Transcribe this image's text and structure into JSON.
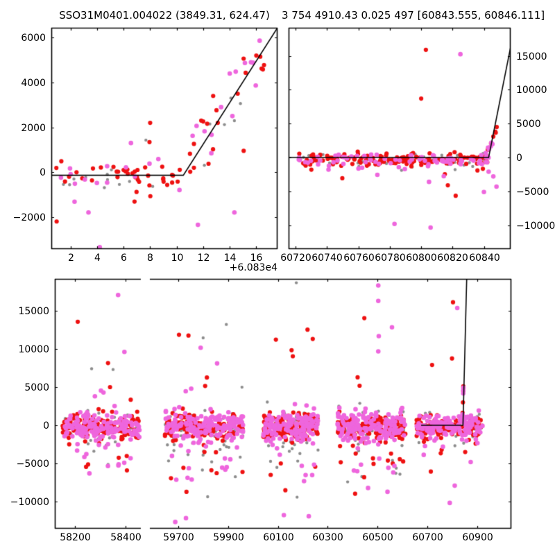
{
  "titles": {
    "left": "SSO31M0401.004022 (3849.31, 624.47)",
    "right": "3 754 4910.43 0.025 497 [60843.555, 60846.111]"
  },
  "colors": {
    "red": "#ee1111",
    "violet": "#ee66dd",
    "gray": "#8d8d8d",
    "line": "#000000",
    "axis": "#000000"
  },
  "chart_data": [
    {
      "id": "top-left-panel",
      "type": "scatter",
      "xlim": [
        0.55,
        17.6
      ],
      "ylim": [
        -3430,
        6440
      ],
      "x_offset_label": "+6.083e4",
      "ytick_side": "left",
      "xticks": [
        {
          "v": 2,
          "l": "2"
        },
        {
          "v": 4,
          "l": "4"
        },
        {
          "v": 6,
          "l": "6"
        },
        {
          "v": 8,
          "l": "8"
        },
        {
          "v": 10,
          "l": "10"
        },
        {
          "v": 12,
          "l": "12"
        },
        {
          "v": 14,
          "l": "14"
        },
        {
          "v": 16,
          "l": "16"
        }
      ],
      "yticks": [
        {
          "v": -2000,
          "l": "−2000"
        },
        {
          "v": 0,
          "l": "0"
        },
        {
          "v": 2000,
          "l": "2000"
        },
        {
          "v": 4000,
          "l": "4000"
        },
        {
          "v": 6000,
          "l": "6000"
        }
      ],
      "line": [
        [
          0.55,
          -140
        ],
        [
          10.5,
          -140
        ],
        [
          17.6,
          6440
        ]
      ],
      "bands": [
        {
          "seed": 11,
          "x": [
            0.68,
            10.45
          ],
          "mu": -180,
          "groups": {
            "gray": {
              "n": 11,
              "sigma": 420
            },
            "red": {
              "n": 40,
              "sigma": 300
            },
            "violet": {
              "n": 13,
              "sigma": 420
            }
          }
        }
      ],
      "rises": [
        {
          "seed": 12,
          "x0": 10.7,
          "dx": 5.9,
          "ymax": 5100,
          "noise": 550,
          "n": 16,
          "colors": [
            "red",
            "violet",
            "gray"
          ]
        }
      ],
      "tails": [],
      "outliers": [
        [
          8.0,
          2200,
          "r"
        ],
        [
          7.68,
          1430,
          "g"
        ],
        [
          7.95,
          1340,
          "r"
        ],
        [
          6.55,
          1300,
          "v"
        ],
        [
          0.95,
          -2200,
          "r"
        ],
        [
          2.3,
          -1320,
          "v"
        ],
        [
          3.35,
          -1800,
          "v"
        ],
        [
          4.2,
          -3350,
          "v"
        ],
        [
          11.6,
          -2350,
          "v"
        ],
        [
          14.35,
          -1800,
          "v"
        ],
        [
          15.05,
          950,
          "r"
        ],
        [
          16.0,
          5200,
          "r"
        ],
        [
          16.3,
          5150,
          "r"
        ],
        [
          15.6,
          4900,
          "v"
        ],
        [
          15.75,
          4880,
          "v"
        ],
        [
          14.0,
          4400,
          "v"
        ],
        [
          15.2,
          4430,
          "r"
        ],
        [
          16.4,
          4620,
          "r"
        ],
        [
          16.5,
          4580,
          "r"
        ],
        [
          12.75,
          3400,
          "r"
        ],
        [
          14.6,
          3500,
          "r"
        ],
        [
          13.0,
          2760,
          "r"
        ],
        [
          12.0,
          2260,
          "r"
        ],
        [
          11.5,
          2060,
          "v"
        ],
        [
          12.3,
          2160,
          "r"
        ],
        [
          13.35,
          2900,
          "v"
        ],
        [
          14.2,
          2500,
          "v"
        ],
        [
          13.6,
          2120,
          "g"
        ],
        [
          12.5,
          2150,
          "g"
        ],
        [
          11.2,
          1620,
          "v"
        ],
        [
          11.0,
          820,
          "r"
        ],
        [
          11.3,
          1260,
          "r"
        ],
        [
          12.1,
          1820,
          "v"
        ],
        [
          11.85,
          2300,
          "r"
        ],
        [
          14.45,
          4480,
          "v"
        ],
        [
          13.1,
          2200,
          "r"
        ]
      ]
    },
    {
      "id": "top-right-panel",
      "type": "scatter",
      "xlim": [
        60715.5,
        60857
      ],
      "ylim": [
        -13520,
        19160
      ],
      "ytick_side": "right",
      "xticks": [
        {
          "v": 60720,
          "l": "60720"
        },
        {
          "v": 60740,
          "l": "60740"
        },
        {
          "v": 60760,
          "l": "60760"
        },
        {
          "v": 60780,
          "l": "60780"
        },
        {
          "v": 60800,
          "l": "60800"
        },
        {
          "v": 60820,
          "l": "60820"
        },
        {
          "v": 60840,
          "l": "60840"
        }
      ],
      "yticks": [
        {
          "v": -10000,
          "l": "−10000"
        },
        {
          "v": -5000,
          "l": "−5000"
        },
        {
          "v": 0,
          "l": "0"
        },
        {
          "v": 5000,
          "l": "5000"
        },
        {
          "v": 10000,
          "l": "10000"
        },
        {
          "v": 15000,
          "l": "15000"
        }
      ],
      "line": [
        [
          60715.5,
          0
        ],
        [
          60843,
          0
        ],
        [
          60857,
          16300
        ]
      ],
      "bands": [
        {
          "seed": 21,
          "x": [
            60722,
            60843
          ],
          "mu": -280,
          "groups": {
            "gray": {
              "n": 38,
              "sigma": 620
            },
            "red": {
              "n": 150,
              "sigma": 430
            },
            "violet": {
              "n": 72,
              "sigma": 500
            }
          }
        }
      ],
      "rises": [
        {
          "seed": 22,
          "x0": 60841,
          "dx": 8,
          "ymax": 4800,
          "noise": 420,
          "n": 20,
          "colors": [
            "red",
            "violet"
          ]
        }
      ],
      "tails": [
        {
          "seed": 23,
          "x": [
            60740,
            60845
          ],
          "y": [
            -3200,
            -1200
          ],
          "n": 14,
          "weights": {
            "violet": 0.45,
            "red": 0.45,
            "gray": 0.1
          }
        }
      ],
      "outliers": [
        [
          60803,
          15900,
          "r"
        ],
        [
          60825,
          15250,
          "v"
        ],
        [
          60800,
          8700,
          "r"
        ],
        [
          60783,
          -9800,
          "v"
        ],
        [
          60806,
          -10350,
          "v"
        ],
        [
          60822,
          -5650,
          "r"
        ],
        [
          60840,
          -5100,
          "v"
        ],
        [
          60817,
          -4100,
          "r"
        ],
        [
          60805,
          -3600,
          "v"
        ],
        [
          60843,
          -2100,
          "v"
        ],
        [
          60846,
          -2800,
          "v"
        ],
        [
          60848,
          -4300,
          "v"
        ],
        [
          60730,
          -1800,
          "r"
        ]
      ]
    },
    {
      "id": "bottom-panel",
      "type": "scatter",
      "segments": [
        {
          "xlim": [
            58119,
            58460
          ],
          "frac": [
            0,
            0.1884
          ]
        },
        {
          "xlim": [
            59586,
            61037
          ],
          "frac": [
            0.2082,
            1
          ]
        }
      ],
      "ylim": [
        -13520,
        19160
      ],
      "ytick_side": "left",
      "xticks": [
        {
          "v": 58200,
          "l": "58200"
        },
        {
          "v": 58400,
          "l": "58400"
        },
        {
          "v": 59700,
          "l": "59700"
        },
        {
          "v": 59900,
          "l": "59900"
        },
        {
          "v": 60100,
          "l": "60100"
        },
        {
          "v": 60300,
          "l": "60300"
        },
        {
          "v": 60500,
          "l": "60500"
        },
        {
          "v": 60700,
          "l": "60700"
        },
        {
          "v": 60900,
          "l": "60900"
        }
      ],
      "yticks": [
        {
          "v": -10000,
          "l": "−10000"
        },
        {
          "v": -5000,
          "l": "−5000"
        },
        {
          "v": 0,
          "l": "0"
        },
        {
          "v": 5000,
          "l": "5000"
        },
        {
          "v": 10000,
          "l": "10000"
        },
        {
          "v": 15000,
          "l": "15000"
        }
      ],
      "line": [
        [
          60675,
          0
        ],
        [
          60843,
          0
        ],
        [
          60858,
          19160
        ]
      ],
      "bands": [
        {
          "seed": 31,
          "x": [
            58150,
            58455
          ],
          "mu": -200,
          "groups": {
            "gray": {
              "n": 45,
              "sigma": 1350
            },
            "red": {
              "n": 130,
              "sigma": 800
            },
            "violet": {
              "n": 150,
              "sigma": 950
            }
          }
        },
        {
          "seed": 32,
          "x": [
            59645,
            59960
          ],
          "mu": -200,
          "groups": {
            "gray": {
              "n": 50,
              "sigma": 1400
            },
            "red": {
              "n": 150,
              "sigma": 820
            },
            "violet": {
              "n": 170,
              "sigma": 950
            }
          }
        },
        {
          "seed": 33,
          "x": [
            60040,
            60262
          ],
          "mu": -250,
          "groups": {
            "gray": {
              "n": 40,
              "sigma": 1350
            },
            "red": {
              "n": 140,
              "sigma": 850
            },
            "violet": {
              "n": 150,
              "sigma": 950
            }
          }
        },
        {
          "seed": 34,
          "x": [
            60340,
            60612
          ],
          "mu": -250,
          "groups": {
            "gray": {
              "n": 45,
              "sigma": 1400
            },
            "red": {
              "n": 150,
              "sigma": 850
            },
            "violet": {
              "n": 160,
              "sigma": 1000
            }
          }
        },
        {
          "seed": 35,
          "x": [
            60655,
            60922
          ],
          "mu": -200,
          "groups": {
            "gray": {
              "n": 30,
              "sigma": 1000
            },
            "red": {
              "n": 120,
              "sigma": 700
            },
            "violet": {
              "n": 135,
              "sigma": 800
            }
          }
        }
      ],
      "rises": [
        {
          "seed": 36,
          "x0": 60840,
          "dx": 5,
          "ymax": 5100,
          "noise": 350,
          "n": 16,
          "colors": [
            "red",
            "violet"
          ]
        }
      ],
      "tails": [
        {
          "seed": 41,
          "x": [
            58200,
            58440
          ],
          "y": [
            -6300,
            -1800
          ],
          "n": 20,
          "weights": {
            "violet": 0.5,
            "red": 0.3,
            "gray": 0.2
          }
        },
        {
          "seed": 42,
          "x": [
            59660,
            59950
          ],
          "y": [
            -7200,
            -1800
          ],
          "n": 26,
          "weights": {
            "violet": 0.5,
            "red": 0.3,
            "gray": 0.2
          }
        },
        {
          "seed": 43,
          "x": [
            60060,
            60250
          ],
          "y": [
            -6800,
            -1800
          ],
          "n": 22,
          "weights": {
            "violet": 0.5,
            "red": 0.3,
            "gray": 0.2
          }
        },
        {
          "seed": 44,
          "x": [
            60350,
            60605
          ],
          "y": [
            -7000,
            -1800
          ],
          "n": 26,
          "weights": {
            "violet": 0.45,
            "red": 0.3,
            "gray": 0.25
          }
        },
        {
          "seed": 45,
          "x": [
            60680,
            60900
          ],
          "y": [
            -3900,
            -1500
          ],
          "n": 12,
          "weights": {
            "violet": 0.5,
            "red": 0.4,
            "gray": 0.1
          }
        }
      ],
      "outliers": [
        [
          58370,
          17050,
          "v"
        ],
        [
          58210,
          13550,
          "r"
        ],
        [
          58395,
          9600,
          "v"
        ],
        [
          58330,
          8150,
          "r"
        ],
        [
          58265,
          7400,
          "g"
        ],
        [
          58350,
          7300,
          "g"
        ],
        [
          58338,
          5000,
          "r"
        ],
        [
          58302,
          4550,
          "v"
        ],
        [
          58312,
          4300,
          "v"
        ],
        [
          58278,
          3800,
          "v"
        ],
        [
          58420,
          3350,
          "r"
        ],
        [
          58405,
          -5900,
          "r"
        ],
        [
          58372,
          -5100,
          "v"
        ],
        [
          59893,
          13200,
          "g"
        ],
        [
          59703,
          11850,
          "r"
        ],
        [
          59741,
          11750,
          "r"
        ],
        [
          59800,
          11450,
          "g"
        ],
        [
          59790,
          10150,
          "v"
        ],
        [
          59856,
          8100,
          "v"
        ],
        [
          59815,
          6250,
          "r"
        ],
        [
          59808,
          5150,
          "r"
        ],
        [
          59752,
          4800,
          "v"
        ],
        [
          59730,
          4450,
          "v"
        ],
        [
          59688,
          -12650,
          "v"
        ],
        [
          59731,
          -12150,
          "v"
        ],
        [
          59733,
          -8700,
          "r"
        ],
        [
          59818,
          -9350,
          "g"
        ],
        [
          59754,
          -7100,
          "v"
        ],
        [
          59889,
          -5800,
          "v"
        ],
        [
          59958,
          -6100,
          "r"
        ],
        [
          60174,
          18650,
          "g"
        ],
        [
          60219,
          12520,
          "r"
        ],
        [
          60240,
          11300,
          "r"
        ],
        [
          60092,
          11210,
          "r"
        ],
        [
          60155,
          9830,
          "r"
        ],
        [
          60160,
          9040,
          "r"
        ],
        [
          60124,
          -11750,
          "v"
        ],
        [
          60224,
          -11900,
          "v"
        ],
        [
          60177,
          -9400,
          "g"
        ],
        [
          60130,
          -8500,
          "r"
        ],
        [
          60205,
          -7300,
          "v"
        ],
        [
          60503,
          18300,
          "v"
        ],
        [
          60503,
          16280,
          "v"
        ],
        [
          60447,
          14020,
          "r"
        ],
        [
          60558,
          12830,
          "v"
        ],
        [
          60505,
          11670,
          "v"
        ],
        [
          60503,
          9680,
          "v"
        ],
        [
          60420,
          6280,
          "r"
        ],
        [
          60428,
          5180,
          "r"
        ],
        [
          60560,
          -4600,
          "g"
        ],
        [
          60575,
          -5600,
          "g"
        ],
        [
          60590,
          -6400,
          "g"
        ],
        [
          60410,
          -8950,
          "r"
        ],
        [
          60462,
          -8200,
          "v"
        ],
        [
          60540,
          -8700,
          "v"
        ],
        [
          60380,
          -7400,
          "g"
        ],
        [
          60803,
          16100,
          "r"
        ],
        [
          60820,
          15350,
          "v"
        ],
        [
          60799,
          8750,
          "r"
        ],
        [
          60719,
          7900,
          "r"
        ],
        [
          60790,
          -10150,
          "v"
        ],
        [
          60810,
          -7900,
          "v"
        ],
        [
          60714,
          -6050,
          "r"
        ],
        [
          60874,
          -4800,
          "v"
        ],
        [
          60852,
          -3500,
          "r"
        ]
      ]
    }
  ]
}
